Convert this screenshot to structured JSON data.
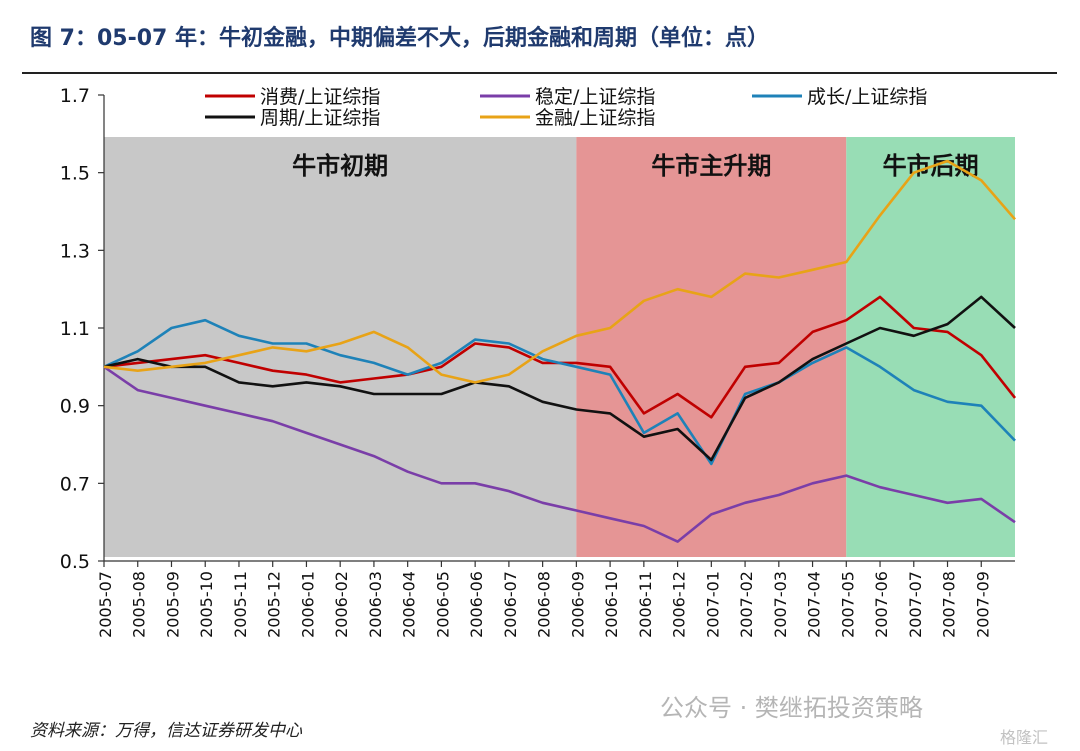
{
  "header": {
    "title": "图 7：05-07 年：牛初金融，中期偏差不大，后期金融和周期（单位：点）"
  },
  "footer": {
    "source": "资料来源：万得，信达证券研发中心",
    "watermark": "公众号 · 樊继拓投资策略",
    "watermark_brand": "格隆汇"
  },
  "chart_data": {
    "type": "line",
    "title": "",
    "xlabel": "",
    "ylabel": "",
    "ylim": [
      0.5,
      1.7
    ],
    "yticks": [
      0.5,
      0.7,
      0.9,
      1.1,
      1.3,
      1.5,
      1.7
    ],
    "ytick_labels": [
      "0.5",
      "0.7",
      "0.9",
      "1.1",
      "1.3",
      "1.5",
      "1.7"
    ],
    "xtick_labels": [
      "2005-07",
      "2005-08",
      "2005-09",
      "2005-10",
      "2005-11",
      "2005-12",
      "2006-01",
      "2006-02",
      "2006-03",
      "2006-04",
      "2006-05",
      "2006-06",
      "2006-07",
      "2006-08",
      "2006-09",
      "2006-10",
      "2006-11",
      "2006-12",
      "2007-01",
      "2007-02",
      "2007-03",
      "2007-04",
      "2007-05",
      "2007-06",
      "2007-07",
      "2007-08",
      "2007-09"
    ],
    "grid": false,
    "legend_position": "top",
    "phases": [
      {
        "label": "牛市初期",
        "start": "2005-07",
        "end": "2006-09",
        "color": "#c8c8c8"
      },
      {
        "label": "牛市主升期",
        "start": "2006-09",
        "end": "2007-05",
        "color": "#e59595"
      },
      {
        "label": "牛市后期",
        "start": "2007-05",
        "end": "2007-10",
        "color": "#98ddb5"
      }
    ],
    "x": [
      "2005-07",
      "2005-08",
      "2005-09",
      "2005-10",
      "2005-11",
      "2005-12",
      "2006-01",
      "2006-02",
      "2006-03",
      "2006-04",
      "2006-05",
      "2006-06",
      "2006-07",
      "2006-08",
      "2006-09",
      "2006-10",
      "2006-11",
      "2006-12",
      "2007-01",
      "2007-02",
      "2007-03",
      "2007-04",
      "2007-05",
      "2007-06",
      "2007-07",
      "2007-08",
      "2007-09",
      "2007-10"
    ],
    "series": [
      {
        "name": "消费/上证综指",
        "color": "#c00000",
        "values": [
          1.0,
          1.01,
          1.02,
          1.03,
          1.01,
          0.99,
          0.98,
          0.96,
          0.97,
          0.98,
          1.0,
          1.06,
          1.05,
          1.01,
          1.01,
          1.0,
          0.88,
          0.93,
          0.87,
          1.0,
          1.01,
          1.09,
          1.12,
          1.18,
          1.1,
          1.09,
          1.03,
          0.92
        ]
      },
      {
        "name": "稳定/上证综指",
        "color": "#7a3ea8",
        "values": [
          1.0,
          0.94,
          0.92,
          0.9,
          0.88,
          0.86,
          0.83,
          0.8,
          0.77,
          0.73,
          0.7,
          0.7,
          0.68,
          0.65,
          0.63,
          0.61,
          0.59,
          0.55,
          0.62,
          0.65,
          0.67,
          0.7,
          0.72,
          0.69,
          0.67,
          0.65,
          0.66,
          0.6
        ]
      },
      {
        "name": "成长/上证综指",
        "color": "#1e82b8",
        "values": [
          1.0,
          1.04,
          1.1,
          1.12,
          1.08,
          1.06,
          1.06,
          1.03,
          1.01,
          0.98,
          1.01,
          1.07,
          1.06,
          1.02,
          1.0,
          0.98,
          0.83,
          0.88,
          0.75,
          0.93,
          0.96,
          1.01,
          1.05,
          1.0,
          0.94,
          0.91,
          0.9,
          0.81
        ]
      },
      {
        "name": "周期/上证综指",
        "color": "#111111",
        "values": [
          1.0,
          1.02,
          1.0,
          1.0,
          0.96,
          0.95,
          0.96,
          0.95,
          0.93,
          0.93,
          0.93,
          0.96,
          0.95,
          0.91,
          0.89,
          0.88,
          0.82,
          0.84,
          0.76,
          0.92,
          0.96,
          1.02,
          1.06,
          1.1,
          1.08,
          1.11,
          1.18,
          1.1
        ]
      },
      {
        "name": "金融/上证综指",
        "color": "#e8a317",
        "values": [
          1.0,
          0.99,
          1.0,
          1.01,
          1.03,
          1.05,
          1.04,
          1.06,
          1.09,
          1.05,
          0.98,
          0.96,
          0.98,
          1.04,
          1.08,
          1.1,
          1.17,
          1.2,
          1.18,
          1.24,
          1.23,
          1.25,
          1.27,
          1.39,
          1.5,
          1.53,
          1.48,
          1.38
        ]
      }
    ]
  }
}
